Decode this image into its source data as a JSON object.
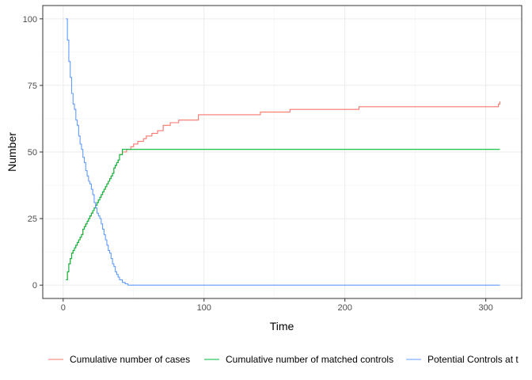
{
  "chart_data": {
    "type": "line",
    "step": true,
    "xlabel": "Time",
    "ylabel": "Number",
    "xlim": [
      -14.5,
      325.5
    ],
    "ylim": [
      -5,
      105
    ],
    "xticks": [
      0,
      100,
      200,
      300
    ],
    "yticks": [
      0,
      25,
      50,
      75,
      100
    ],
    "grid": true,
    "legend_position": "bottom",
    "series": [
      {
        "name": "Cumulative number of cases",
        "color": "#F8766D",
        "x": [
          2,
          3,
          4,
          5,
          6,
          7,
          8,
          9,
          10,
          11,
          12,
          13,
          14,
          15,
          16,
          17,
          18,
          19,
          20,
          21,
          22,
          23,
          24,
          25,
          26,
          27,
          28,
          29,
          30,
          31,
          32,
          33,
          34,
          35,
          36,
          37,
          38,
          39,
          40,
          42,
          45,
          48,
          50,
          53,
          57,
          59,
          63,
          67,
          71,
          76,
          82,
          96,
          140,
          161,
          210,
          309,
          310
        ],
        "y": [
          2,
          5,
          8,
          10,
          12,
          13,
          14,
          15,
          16,
          17,
          18,
          19,
          21,
          22,
          23,
          24,
          25,
          26,
          27,
          28,
          29,
          30,
          31,
          32,
          33,
          34,
          35,
          36,
          37,
          38,
          39,
          40,
          41,
          42,
          44,
          45,
          46,
          47,
          49,
          50,
          51,
          52,
          53,
          54,
          55,
          56,
          57,
          58,
          60,
          61,
          62,
          64,
          65,
          66,
          67,
          68,
          69
        ]
      },
      {
        "name": "Cumulative number of matched controls",
        "color": "#00BA38",
        "x": [
          2,
          3,
          4,
          5,
          6,
          7,
          8,
          9,
          10,
          11,
          12,
          13,
          14,
          15,
          16,
          17,
          18,
          19,
          20,
          21,
          22,
          23,
          24,
          25,
          26,
          27,
          28,
          29,
          30,
          31,
          32,
          33,
          34,
          35,
          36,
          37,
          38,
          39,
          40,
          42,
          310
        ],
        "y": [
          2,
          5,
          8,
          10,
          12,
          13,
          14,
          15,
          16,
          17,
          18,
          19,
          21,
          22,
          23,
          24,
          25,
          26,
          27,
          28,
          29,
          30,
          31,
          32,
          33,
          34,
          35,
          36,
          37,
          38,
          39,
          40,
          41,
          42,
          44,
          45,
          46,
          47,
          49,
          51,
          51
        ]
      },
      {
        "name": "Potential Controls at t",
        "color": "#619CFF",
        "x": [
          2,
          3,
          4,
          5,
          6,
          7,
          8,
          9,
          10,
          11,
          12,
          13,
          14,
          15,
          16,
          17,
          18,
          19,
          20,
          21,
          22,
          23,
          24,
          25,
          26,
          27,
          28,
          29,
          30,
          31,
          32,
          33,
          34,
          35,
          36,
          37,
          38,
          39,
          40,
          41,
          42,
          43,
          44,
          46,
          48,
          310
        ],
        "y": [
          100,
          92,
          84,
          78,
          72,
          68,
          66,
          62,
          60,
          56,
          53,
          51,
          48,
          46,
          43,
          41,
          39,
          38,
          36,
          34,
          31,
          29,
          27,
          26,
          25,
          23,
          21,
          19,
          17,
          15,
          13,
          12,
          10,
          8,
          7,
          5,
          4,
          3,
          2,
          2,
          1,
          1,
          0.5,
          0,
          0,
          0
        ]
      }
    ]
  }
}
